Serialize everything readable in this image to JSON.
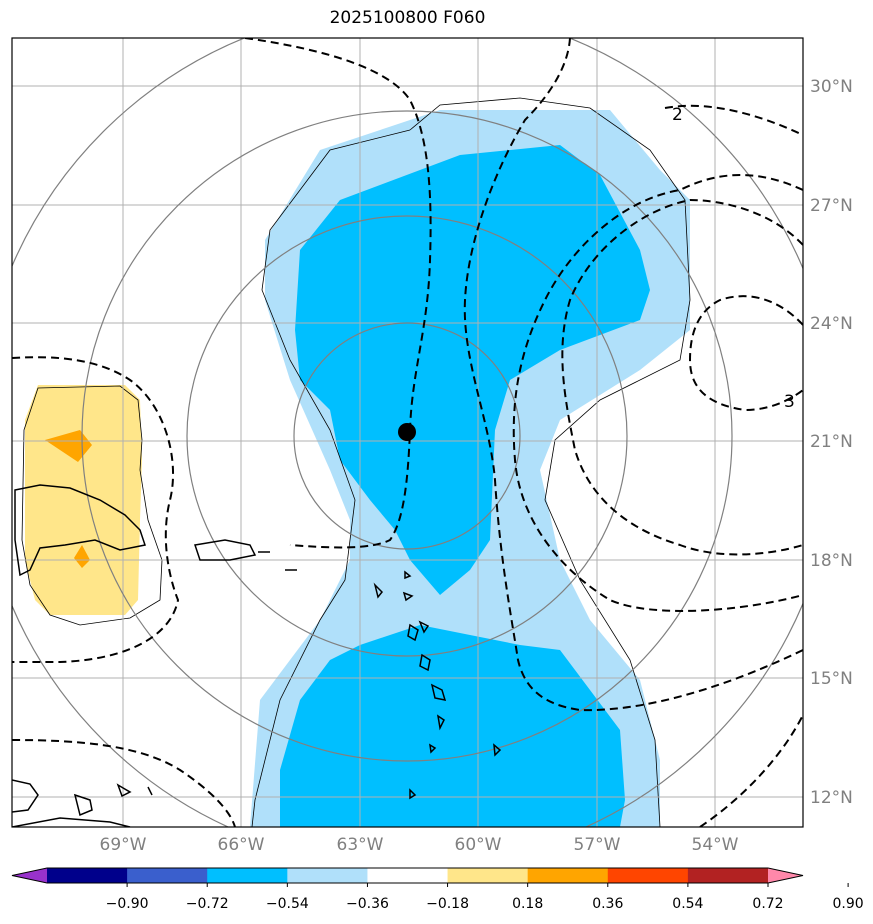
{
  "title": "2025100800 F060",
  "lat_labels": [
    "30°N",
    "27°N",
    "24°N",
    "21°N",
    "18°N",
    "15°N",
    "12°N"
  ],
  "lon_labels": [
    "69°W",
    "66°W",
    "63°W",
    "60°W",
    "57°W",
    "54°W"
  ],
  "contour_labels": [
    "2",
    "3"
  ],
  "colorbar": {
    "ticks": [
      "−0.90",
      "−0.72",
      "−0.54",
      "−0.36",
      "−0.18",
      "0.18",
      "0.36",
      "0.54",
      "0.72",
      "0.90"
    ],
    "colors": [
      "#9932cc",
      "#00008b",
      "#3a5fcd",
      "#00bfff",
      "#b0e0fa",
      "#ffffff",
      "#ffe68a",
      "#ffa500",
      "#ff4500",
      "#b22222",
      "#ff88aa"
    ]
  },
  "colors": {
    "light_blue": "#b0e0fa",
    "deep_sky_blue": "#00bfff",
    "light_yellow": "#ffe68a",
    "orange": "#ffa500",
    "grid": "#b0b0b0",
    "range_rings": "#808080"
  }
}
